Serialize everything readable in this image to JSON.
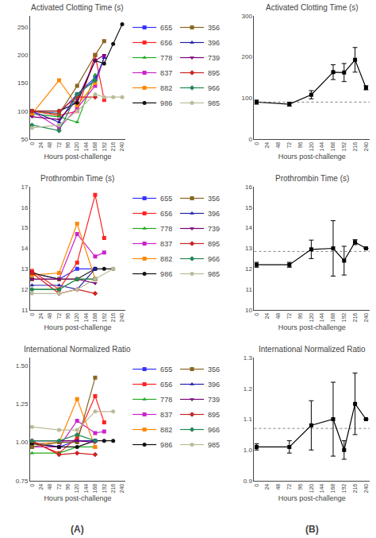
{
  "chart_data": [
    {
      "type": "line",
      "title": "Activated Clotting Time (s)",
      "xlabel": "Hours post-challenge",
      "x": [
        0,
        72,
        120,
        168,
        192,
        216,
        240
      ],
      "series": [
        {
          "name": "655",
          "color": "#3333FF",
          "marker": "square",
          "values": [
            100,
            96,
            130,
            160,
            null,
            null,
            null
          ]
        },
        {
          "name": "656",
          "color": "#FF2222",
          "marker": "square",
          "values": [
            100,
            92,
            100,
            200,
            120,
            null,
            null
          ]
        },
        {
          "name": "778",
          "color": "#22AA22",
          "marker": "triangle-up",
          "values": [
            95,
            90,
            80,
            165,
            null,
            null,
            null
          ]
        },
        {
          "name": "837",
          "color": "#CC22CC",
          "marker": "square",
          "values": [
            100,
            70,
            105,
            145,
            197,
            null,
            null
          ]
        },
        {
          "name": "882",
          "color": "#FF8800",
          "marker": "square",
          "values": [
            95,
            155,
            110,
            150,
            null,
            null,
            null
          ]
        },
        {
          "name": "986",
          "color": "#111111",
          "marker": "circle",
          "values": [
            100,
            100,
            115,
            190,
            185,
            220,
            255
          ]
        },
        {
          "name": "356",
          "color": "#886622",
          "marker": "square",
          "values": [
            100,
            95,
            145,
            200,
            225,
            null,
            null
          ]
        },
        {
          "name": "396",
          "color": "#2222AA",
          "marker": "triangle-up",
          "values": [
            100,
            80,
            130,
            155,
            195,
            null,
            null
          ]
        },
        {
          "name": "739",
          "color": "#770077",
          "marker": "triangle-down",
          "values": [
            90,
            85,
            120,
            190,
            200,
            null,
            null
          ]
        },
        {
          "name": "895",
          "color": "#CC2222",
          "marker": "diamond",
          "values": [
            100,
            100,
            125,
            125,
            null,
            null,
            null
          ]
        },
        {
          "name": "966",
          "color": "#228855",
          "marker": "diamond",
          "values": [
            75,
            65,
            130,
            155,
            null,
            null,
            null
          ]
        },
        {
          "name": "985",
          "color": "#BBBB99",
          "marker": "circle",
          "values": [
            70,
            75,
            100,
            130,
            125,
            125,
            125
          ]
        }
      ],
      "xlim": [
        -5,
        248
      ],
      "xticks": [
        0,
        24,
        48,
        72,
        96,
        120,
        144,
        168,
        192,
        216,
        240
      ],
      "ylim": [
        50,
        270
      ],
      "yticks": [
        50,
        100,
        150,
        200,
        250
      ],
      "grid": false,
      "legend": "right"
    },
    {
      "type": "line",
      "title": "Activated Clotting Time (s)",
      "xlabel": "Hours post-challenge",
      "x": [
        0,
        72,
        120,
        168,
        192,
        216,
        240
      ],
      "series": [
        {
          "color": "black",
          "marker": "square",
          "values": [
            90,
            85,
            108,
            163,
            162,
            193,
            125
          ],
          "errors": [
            5,
            5,
            10,
            18,
            22,
            30,
            5
          ]
        }
      ],
      "baseline": {
        "value": 90,
        "color": "gray",
        "line_style": "dotted"
      },
      "xlim": [
        -5,
        248
      ],
      "xticks": [
        0,
        24,
        48,
        72,
        96,
        120,
        144,
        168,
        192,
        216,
        240
      ],
      "ylim": [
        0,
        300
      ],
      "yticks": [
        0,
        100,
        200,
        300
      ],
      "grid": false
    },
    {
      "type": "line",
      "title": "Prothrombin Time (s)",
      "xlabel": "Hours post-challenge",
      "x": [
        0,
        72,
        120,
        168,
        192,
        216
      ],
      "series": [
        {
          "name": "655",
          "color": "#3333FF",
          "marker": "square",
          "values": [
            12.8,
            12.5,
            13.0,
            13.0,
            null,
            null
          ]
        },
        {
          "name": "656",
          "color": "#FF2222",
          "marker": "square",
          "values": [
            12.9,
            12.0,
            13.3,
            16.6,
            14.5,
            null
          ]
        },
        {
          "name": "778",
          "color": "#22AA22",
          "marker": "triangle-up",
          "values": [
            12.0,
            12.0,
            12.5,
            12.5,
            null,
            null
          ]
        },
        {
          "name": "837",
          "color": "#CC22CC",
          "marker": "square",
          "values": [
            12.5,
            12.5,
            14.7,
            13.6,
            13.8,
            null
          ]
        },
        {
          "name": "882",
          "color": "#FF8800",
          "marker": "square",
          "values": [
            12.7,
            12.8,
            15.2,
            12.5,
            null,
            null
          ]
        },
        {
          "name": "986",
          "color": "#111111",
          "marker": "circle",
          "values": [
            12.8,
            12.5,
            12.5,
            13.0,
            13.0,
            13.0
          ]
        },
        {
          "name": "356",
          "color": "#886622",
          "marker": "square",
          "values": [
            12.5,
            12.5,
            12.5,
            12.5,
            null,
            null
          ]
        },
        {
          "name": "396",
          "color": "#2222AA",
          "marker": "triangle-up",
          "values": [
            12.2,
            12.2,
            12.0,
            13.0,
            null,
            null
          ]
        },
        {
          "name": "739",
          "color": "#770077",
          "marker": "triangle-down",
          "values": [
            12.5,
            12.5,
            12.5,
            12.3,
            null,
            null
          ]
        },
        {
          "name": "895",
          "color": "#CC2222",
          "marker": "diamond",
          "values": [
            12.8,
            11.8,
            12.0,
            11.8,
            null,
            null
          ]
        },
        {
          "name": "966",
          "color": "#228855",
          "marker": "diamond",
          "values": [
            12.0,
            12.0,
            12.5,
            12.5,
            null,
            null
          ]
        },
        {
          "name": "985",
          "color": "#BBBB99",
          "marker": "circle",
          "values": [
            11.8,
            11.8,
            12.0,
            12.5,
            null,
            13.0
          ]
        }
      ],
      "xlim": [
        -5,
        248
      ],
      "xticks": [
        0,
        24,
        48,
        72,
        96,
        120,
        144,
        168,
        192,
        216,
        240
      ],
      "ylim": [
        11,
        17
      ],
      "yticks": [
        11,
        12,
        13,
        14,
        15,
        16,
        17
      ],
      "grid": false,
      "legend": "right"
    },
    {
      "type": "line",
      "title": "Prothrombin Time (s)",
      "xlabel": "Hours post-challenge",
      "x": [
        0,
        72,
        120,
        168,
        192,
        216,
        240
      ],
      "series": [
        {
          "color": "black",
          "marker": "square",
          "values": [
            12.2,
            12.2,
            12.95,
            13.0,
            12.4,
            13.3,
            13.0
          ],
          "errors": [
            0.12,
            0.12,
            0.45,
            1.35,
            0.7,
            0.12,
            0.0
          ]
        }
      ],
      "baseline": {
        "value": 12.85,
        "color": "gray",
        "line_style": "dotted"
      },
      "xlim": [
        -5,
        248
      ],
      "xticks": [
        0,
        24,
        48,
        72,
        96,
        120,
        144,
        168,
        192,
        216,
        240
      ],
      "ylim": [
        10,
        16
      ],
      "yticks": [
        10,
        11,
        12,
        13,
        14,
        15,
        16
      ],
      "grid": false
    },
    {
      "type": "line",
      "title": "International Normalized Ratio",
      "xlabel": "Hours post-challenge",
      "x": [
        0,
        72,
        120,
        168,
        192,
        216
      ],
      "series": [
        {
          "name": "655",
          "color": "#3333FF",
          "marker": "square",
          "values": [
            1.0,
            0.97,
            1.01,
            1.01,
            null,
            null
          ]
        },
        {
          "name": "656",
          "color": "#FF2222",
          "marker": "square",
          "values": [
            1.0,
            0.93,
            1.03,
            1.3,
            1.13,
            null
          ]
        },
        {
          "name": "778",
          "color": "#22AA22",
          "marker": "triangle-up",
          "values": [
            0.93,
            0.93,
            0.97,
            0.97,
            null,
            null
          ]
        },
        {
          "name": "837",
          "color": "#CC22CC",
          "marker": "square",
          "values": [
            0.97,
            0.97,
            1.14,
            1.06,
            1.07,
            null
          ]
        },
        {
          "name": "882",
          "color": "#FF8800",
          "marker": "square",
          "values": [
            0.99,
            1.0,
            1.28,
            0.97,
            null,
            null
          ]
        },
        {
          "name": "986",
          "color": "#111111",
          "marker": "circle",
          "values": [
            0.99,
            0.97,
            0.97,
            1.01,
            1.01,
            1.01
          ]
        },
        {
          "name": "356",
          "color": "#886622",
          "marker": "square",
          "values": [
            0.97,
            1.0,
            1.0,
            1.42,
            null,
            null
          ]
        },
        {
          "name": "396",
          "color": "#2222AA",
          "marker": "triangle-up",
          "values": [
            1.01,
            1.01,
            1.01,
            1.01,
            null,
            null
          ]
        },
        {
          "name": "739",
          "color": "#770077",
          "marker": "triangle-down",
          "values": [
            1.01,
            1.01,
            1.01,
            1.0,
            null,
            null
          ]
        },
        {
          "name": "895",
          "color": "#CC2222",
          "marker": "diamond",
          "values": [
            1.01,
            0.92,
            0.93,
            0.92,
            null,
            null
          ]
        },
        {
          "name": "966",
          "color": "#228855",
          "marker": "diamond",
          "values": [
            1.01,
            1.01,
            1.05,
            1.01,
            null,
            null
          ]
        },
        {
          "name": "985",
          "color": "#BBBB99",
          "marker": "circle",
          "values": [
            1.1,
            1.08,
            1.08,
            1.2,
            null,
            1.2
          ]
        }
      ],
      "xlim": [
        -5,
        248
      ],
      "xticks": [
        0,
        24,
        48,
        72,
        96,
        120,
        144,
        168,
        192,
        216,
        240
      ],
      "ylim": [
        0.75,
        1.55
      ],
      "yticks": [
        0.75,
        {
          "value": 1.0,
          "label": "1.00"
        },
        1.25,
        {
          "value": 1.5,
          "label": "1.50"
        }
      ],
      "grid": false,
      "legend": "right",
      "annotation": "(A)"
    },
    {
      "type": "line",
      "title": "International Normalized Ratio",
      "xlabel": "Hours post-challenge",
      "x": [
        0,
        72,
        120,
        168,
        192,
        216,
        240
      ],
      "series": [
        {
          "color": "black",
          "marker": "square",
          "values": [
            1.01,
            1.01,
            1.08,
            1.1,
            1.0,
            1.15,
            1.1
          ],
          "errors": [
            0.01,
            0.02,
            0.08,
            0.12,
            0.03,
            0.1,
            0.0
          ]
        }
      ],
      "baseline": {
        "value": 1.07,
        "color": "gray",
        "line_style": "dotted"
      },
      "xlim": [
        -5,
        248
      ],
      "xticks": [
        0,
        24,
        48,
        72,
        96,
        120,
        144,
        168,
        192,
        216,
        240
      ],
      "ylim": [
        0.9,
        1.3
      ],
      "yticks": [
        0.9,
        {
          "value": 1.0,
          "label": "1.0"
        },
        1.1,
        1.2,
        1.3
      ],
      "grid": false,
      "annotation": "(B)"
    }
  ]
}
